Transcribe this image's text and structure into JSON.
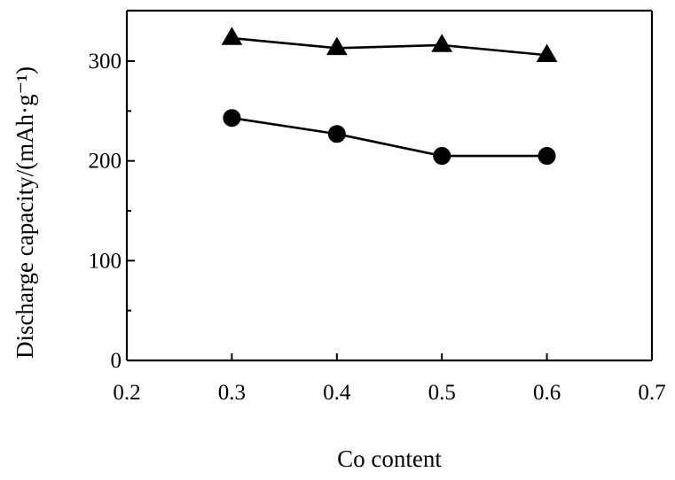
{
  "chart_data": {
    "type": "line",
    "xlabel": "Co content",
    "ylabel": "Discharge capacity/(mAh·g⁻¹)",
    "xlim": [
      0.2,
      0.7
    ],
    "ylim": [
      0,
      350
    ],
    "x_ticks": [
      "0.2",
      "0.3",
      "0.4",
      "0.5",
      "0.6",
      "0.7"
    ],
    "y_ticks": [
      "0",
      "100",
      "200",
      "300"
    ],
    "grid": false,
    "legend": "none",
    "series": [
      {
        "marker": "triangle",
        "x": [
          0.3,
          0.4,
          0.5,
          0.6
        ],
        "values": [
          323,
          313,
          316,
          306
        ]
      },
      {
        "marker": "circle",
        "x": [
          0.3,
          0.4,
          0.5,
          0.6
        ],
        "values": [
          243,
          227,
          205,
          205
        ]
      }
    ]
  }
}
